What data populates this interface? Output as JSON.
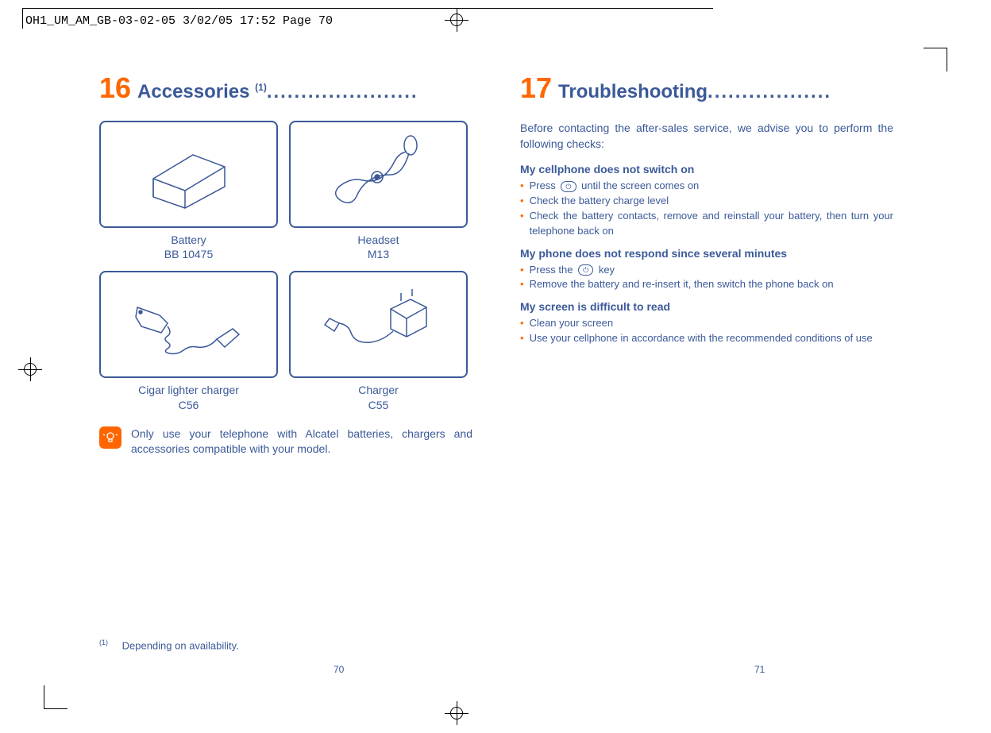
{
  "print_header": "OH1_UM_AM_GB-03-02-05   3/02/05  17:52  Page 70",
  "left_page": {
    "section_num": "16",
    "section_title": "Accessories",
    "section_sup": "(1)",
    "dots": "......................",
    "accessories": [
      {
        "name": "Battery",
        "model": "BB 10475",
        "icon": "battery"
      },
      {
        "name": "Headset",
        "model": "M13",
        "icon": "headset"
      },
      {
        "name": "Cigar lighter charger",
        "model": "C56",
        "icon": "car-charger"
      },
      {
        "name": "Charger",
        "model": "C55",
        "icon": "charger"
      }
    ],
    "note": "Only use your telephone with Alcatel batteries, chargers and accessories compatible with your model.",
    "footnote_sup": "(1)",
    "footnote": "Depending on availability.",
    "page_num": "70"
  },
  "right_page": {
    "section_num": "17",
    "section_title": "Troubleshooting",
    "dots": "..................",
    "intro": "Before contacting the after-sales service, we advise you to perform the following checks:",
    "sections": [
      {
        "heading": "My cellphone does not switch on",
        "items": [
          {
            "pre": "Press ",
            "key": "⏻",
            "post": " until the screen comes on"
          },
          {
            "pre": "Check the battery charge level"
          },
          {
            "pre": "Check the battery contacts, remove and reinstall your battery, then turn your telephone back on"
          }
        ]
      },
      {
        "heading": "My phone does not respond since several minutes",
        "items": [
          {
            "pre": "Press the ",
            "key": "⏻",
            "post": " key"
          },
          {
            "pre": "Remove the battery and re-insert it, then switch the phone back on"
          }
        ]
      },
      {
        "heading": "My screen is difficult to read",
        "items": [
          {
            "pre": "Clean your screen"
          },
          {
            "pre": "Use your cellphone in accordance with the recommended conditions of use"
          }
        ]
      }
    ],
    "page_num": "71"
  },
  "colors": {
    "primary": "#3b5998",
    "accent": "#ff6600"
  }
}
